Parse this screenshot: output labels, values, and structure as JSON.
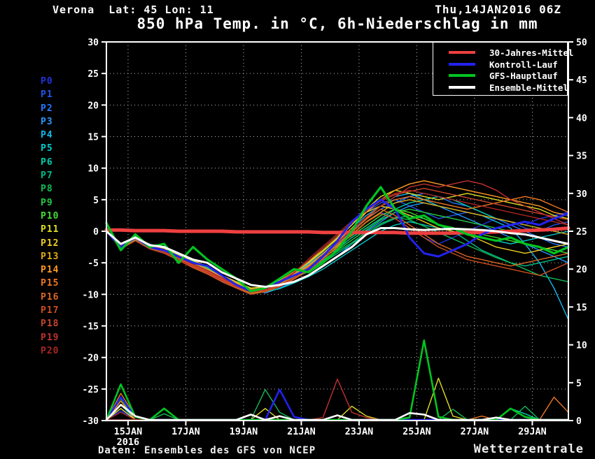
{
  "header": {
    "station": "Verona  Lat: 45 Lon: 11",
    "runtime": "Thu,14JAN2016 06Z",
    "title": "850 hPa Temp. in °C, 6h-Niederschlag in mm"
  },
  "footer": {
    "source": "Daten: Ensembles des GFS von NCEP",
    "brand": "Wetterzentrale"
  },
  "chart_data": {
    "type": "line",
    "title": "850 hPa Temp. in °C, 6h-Niederschlag in mm",
    "grid": true,
    "legend_position": "top-right",
    "x_axis": {
      "tick_labels": [
        "15JAN",
        "17JAN",
        "19JAN",
        "21JAN",
        "23JAN",
        "25JAN",
        "27JAN",
        "29JAN"
      ],
      "year_label": "2016",
      "tick_t": [
        1.5,
        5.5,
        9.5,
        13.5,
        17.5,
        21.5,
        25.5,
        29.5
      ]
    },
    "y_left": {
      "min": -30,
      "max": 30,
      "step": 5,
      "unit": "°C"
    },
    "y_right": {
      "min": 0,
      "max": 50,
      "step": 5,
      "unit": "mm"
    },
    "time_steps": 33,
    "step_hours": 12,
    "main_series": [
      {
        "name": "30-Jahres-Mittel",
        "color": "#ee4040",
        "width": 5,
        "temp": [
          0.2,
          0.2,
          0.1,
          0.1,
          0.1,
          0,
          0,
          0,
          0,
          -0.1,
          -0.1,
          -0.1,
          -0.1,
          -0.1,
          -0.1,
          -0.2,
          -0.2,
          -0.2,
          -0.2,
          -0.2,
          -0.2,
          -0.3,
          -0.3,
          -0.3,
          -0.3,
          -0.2,
          -0.2,
          -0.1,
          0,
          0.1,
          0.2,
          0.3,
          0.5
        ]
      },
      {
        "name": "Kontroll-Lauf",
        "color": "#2222ee",
        "width": 3,
        "temp": [
          0,
          -2.5,
          -1,
          -2.5,
          -3,
          -4,
          -5,
          -5.5,
          -7,
          -8.5,
          -9.5,
          -9,
          -8,
          -7,
          -6,
          -4,
          -1.5,
          1.5,
          3.5,
          5,
          3.5,
          -1,
          -3.5,
          -4,
          -3,
          -2,
          -0.5,
          0.5,
          1,
          1.5,
          1,
          2,
          2.8
        ],
        "precip": [
          [
            1,
            3
          ],
          [
            2,
            0.4
          ],
          [
            12,
            4
          ],
          [
            13,
            0.4
          ]
        ]
      },
      {
        "name": "GFS-Hauptlauf",
        "color": "#00c420",
        "width": 3.2,
        "temp": [
          1.3,
          -3,
          -0.5,
          -2.5,
          -2,
          -5,
          -2.5,
          -4.5,
          -6,
          -7.5,
          -9.5,
          -9,
          -7.5,
          -6,
          -6.5,
          -5,
          -3,
          0,
          4,
          7,
          3.5,
          2,
          2.5,
          1,
          0.5,
          -0.5,
          -1,
          -1.5,
          -1,
          -2,
          -2.5,
          -3.5,
          -2.5
        ],
        "precip": [
          [
            1,
            4.7
          ],
          [
            2,
            0.4
          ],
          [
            4,
            1.5
          ],
          [
            21,
            0.3
          ],
          [
            22,
            10.5
          ],
          [
            23,
            0.4
          ],
          [
            28,
            1.5
          ],
          [
            29,
            0.4
          ]
        ]
      },
      {
        "name": "Ensemble-Mittel",
        "color": "#ffffff",
        "width": 3,
        "temp": [
          0,
          -2,
          -1,
          -2.2,
          -2.5,
          -3.5,
          -4.5,
          -5,
          -6.5,
          -7.5,
          -8.5,
          -8.8,
          -8.5,
          -8,
          -7,
          -5.5,
          -4,
          -2.5,
          -0.5,
          0.5,
          0.5,
          0.3,
          0.2,
          0.3,
          0.4,
          0.3,
          0.2,
          0,
          -0.3,
          -0.5,
          -1,
          -1.5,
          -2
        ],
        "precip": [
          [
            1,
            2
          ],
          [
            2,
            0.5
          ],
          [
            10,
            0.7
          ],
          [
            12,
            0.5
          ],
          [
            16,
            0.6
          ],
          [
            21,
            0.9
          ],
          [
            22,
            0.7
          ],
          [
            27,
            0.3
          ]
        ]
      }
    ],
    "members": [
      {
        "name": "P0",
        "color": "#2233dd",
        "temp": [
          0,
          -2.5,
          -1,
          -2.3,
          -3,
          -4,
          -5,
          -5.5,
          -7,
          -8.5,
          -9,
          -9.5,
          -8.5,
          -7.5,
          -6,
          -4.5,
          -2.5,
          -0.5,
          1.5,
          3,
          2,
          0.5,
          -1,
          -2,
          -1,
          0,
          1,
          2,
          1.5,
          1,
          2,
          2.5,
          3
        ],
        "precip": [
          [
            1,
            1.2
          ]
        ]
      },
      {
        "name": "P1",
        "color": "#2255ee",
        "temp": [
          0,
          -2.2,
          -0.8,
          -2.5,
          -2.8,
          -3.8,
          -4.8,
          -6,
          -7.5,
          -8.8,
          -9.2,
          -9,
          -8,
          -6.5,
          -5,
          -3,
          -1,
          1,
          3,
          4.5,
          5,
          4,
          3,
          2,
          2.5,
          3,
          2.5,
          2,
          1.5,
          0.5,
          0,
          1,
          1.5
        ]
      },
      {
        "name": "P2",
        "color": "#2277ff",
        "temp": [
          0,
          -2.8,
          -1.2,
          -2,
          -3.2,
          -4.2,
          -5.2,
          -6.5,
          -8,
          -9,
          -10,
          -9.5,
          -8.5,
          -7,
          -5.5,
          -4,
          -2,
          0,
          2,
          3.5,
          4.5,
          5.5,
          6,
          5.5,
          4.5,
          4,
          3,
          2,
          1,
          0,
          -1,
          -2,
          -2.5
        ],
        "precip": [
          [
            1,
            1.5
          ]
        ]
      },
      {
        "name": "P3",
        "color": "#2299ff",
        "temp": [
          0,
          -2.4,
          -1,
          -2.6,
          -3,
          -4,
          -5.5,
          -6,
          -7,
          -8,
          -9,
          -9.8,
          -9,
          -8,
          -7,
          -5.5,
          -4,
          -2,
          0,
          1.5,
          3,
          4,
          4.5,
          4,
          3,
          2,
          1,
          0,
          -1,
          -2,
          -3,
          -4,
          -5
        ]
      },
      {
        "name": "P4",
        "color": "#11bbee",
        "temp": [
          0,
          -2.6,
          -1.4,
          -2.2,
          -3,
          -4.5,
          -5,
          -6.2,
          -7.8,
          -9,
          -9.5,
          -9,
          -8,
          -6.8,
          -5.2,
          -3.5,
          -1.5,
          0.5,
          2.5,
          4,
          5.5,
          6,
          5,
          4,
          3.5,
          3,
          2.5,
          1.5,
          0.5,
          -2,
          -5,
          -9,
          -14
        ],
        "precip": [
          [
            1,
            2
          ]
        ]
      },
      {
        "name": "P5",
        "color": "#00cccc",
        "temp": [
          0,
          -2.3,
          -0.9,
          -2.4,
          -3.1,
          -4.1,
          -5.3,
          -6.3,
          -7.2,
          -8.2,
          -9.3,
          -9.6,
          -9.1,
          -8.2,
          -7.2,
          -6,
          -4.5,
          -3,
          -1.5,
          0,
          1,
          1.5,
          1,
          0.5,
          0,
          -0.5,
          -1,
          -1.5,
          -2,
          -1.5,
          -1,
          -0.5,
          0
        ]
      },
      {
        "name": "P6",
        "color": "#00ccaa",
        "temp": [
          0,
          -2.7,
          -1.1,
          -2.1,
          -2.9,
          -3.9,
          -4.9,
          -5.8,
          -7.4,
          -8.6,
          -9.4,
          -9.2,
          -8.4,
          -7,
          -5.8,
          -4.2,
          -2.8,
          -1,
          0.5,
          2,
          3.5,
          4.5,
          5,
          5.5,
          5,
          4,
          3,
          2,
          1.5,
          1,
          0.5,
          0,
          -0.5
        ],
        "precip": [
          [
            28,
            1.5
          ],
          [
            29,
            0.8
          ]
        ]
      },
      {
        "name": "P7",
        "color": "#00bb88",
        "temp": [
          0,
          -2.5,
          -1.3,
          -2.7,
          -3.3,
          -4.3,
          -5.6,
          -6.6,
          -7.6,
          -8.4,
          -9.6,
          -9.4,
          -8.6,
          -7.4,
          -6.4,
          -5,
          -3.5,
          -2,
          -0.5,
          1,
          2,
          2.5,
          2,
          1,
          0,
          -1.5,
          -3,
          -4,
          -5,
          -5.5,
          -5,
          -4.5,
          -4
        ]
      },
      {
        "name": "P8",
        "color": "#11bb55",
        "temp": [
          0,
          -2.4,
          -1.2,
          -2.3,
          -3.2,
          -4.4,
          -5.4,
          -6.4,
          -7.3,
          -8.3,
          -9.2,
          -9,
          -8.2,
          -7.2,
          -6.2,
          -4.8,
          -3.2,
          -1.8,
          -0.2,
          1.2,
          2.2,
          1.8,
          0.8,
          -0.2,
          -1.2,
          -2.2,
          -3.2,
          -4.2,
          -5,
          -6,
          -7,
          -7.5,
          -8
        ],
        "precip": [
          [
            1,
            2.8
          ],
          [
            4,
            0.8
          ],
          [
            11,
            4
          ],
          [
            12,
            1
          ],
          [
            24,
            1.4
          ],
          [
            29,
            1.8
          ]
        ]
      },
      {
        "name": "P9",
        "color": "#22cc44",
        "temp": [
          0,
          -2.6,
          -1,
          -2.5,
          -3,
          -4.2,
          -5.1,
          -6.1,
          -7.7,
          -8.7,
          -9.7,
          -9.3,
          -8.3,
          -7.3,
          -6,
          -4.6,
          -3,
          -1.4,
          0.2,
          1.8,
          3,
          3.5,
          3,
          2.5,
          2,
          1.5,
          1,
          0.5,
          0,
          -0.5,
          -1,
          -1.5,
          -2
        ]
      },
      {
        "name": "P10",
        "color": "#44dd33",
        "temp": [
          0,
          -2.2,
          -0.7,
          -2.2,
          -2.7,
          -3.7,
          -4.7,
          -5.7,
          -7.1,
          -8.1,
          -9.1,
          -8.9,
          -8.1,
          -6.9,
          -5.5,
          -3.9,
          -2.3,
          -0.7,
          0.9,
          2.5,
          3.5,
          3,
          2,
          1,
          0.5,
          0,
          -0.5,
          -1,
          -1.5,
          -2,
          -2.5,
          -3,
          -3.5
        ]
      },
      {
        "name": "P11",
        "color": "#dddd22",
        "temp": [
          0,
          -2.5,
          -1.1,
          -2.4,
          -3.1,
          -4.1,
          -5.2,
          -6.2,
          -7.4,
          -8.5,
          -9.4,
          -9.1,
          -8,
          -6.6,
          -5,
          -3.2,
          -1.2,
          1,
          3.5,
          5.5,
          6.5,
          6,
          5.5,
          5,
          5.5,
          6,
          5.5,
          5,
          4.5,
          4,
          3.5,
          2.5,
          2
        ],
        "precip": [
          [
            1,
            1.5
          ],
          [
            11,
            1.5
          ],
          [
            17,
            1.8
          ],
          [
            18,
            0.5
          ],
          [
            23,
            5.5
          ],
          [
            24,
            0.5
          ]
        ]
      },
      {
        "name": "P12",
        "color": "#eecc22",
        "temp": [
          0,
          -2.3,
          -0.8,
          -2.1,
          -2.8,
          -3.8,
          -4.6,
          -5.6,
          -7,
          -8,
          -9,
          -8.8,
          -7.8,
          -6.4,
          -4.8,
          -3,
          -1,
          1.5,
          3,
          4,
          3.5,
          2.5,
          1.5,
          0.5,
          0,
          -0.5,
          -1.5,
          -2.5,
          -3,
          -3.5,
          -3,
          -2.5,
          -2
        ]
      },
      {
        "name": "P13",
        "color": "#ddaa11",
        "temp": [
          0,
          -2.7,
          -1.3,
          -2.6,
          -3.3,
          -4.5,
          -5.7,
          -6.7,
          -7.9,
          -8.9,
          -9.8,
          -9.5,
          -8.7,
          -7.5,
          -6.1,
          -4.3,
          -2.5,
          -0.5,
          1.5,
          3,
          4.5,
          5,
          4.5,
          4,
          3.5,
          3,
          2.5,
          2,
          1.5,
          1,
          0.5,
          0,
          -0.5
        ]
      },
      {
        "name": "P14",
        "color": "#ff9922",
        "temp": [
          0,
          -2.4,
          -0.9,
          -2.3,
          -3,
          -4,
          -5,
          -6,
          -7.2,
          -8.2,
          -9.2,
          -9,
          -8,
          -6.8,
          -5.4,
          -3.6,
          -1.6,
          0.5,
          3,
          5,
          6.5,
          7.5,
          8,
          7.5,
          7,
          6.5,
          6,
          5.5,
          5,
          4.5,
          4,
          3,
          2.5
        ],
        "precip": [
          [
            1,
            2.5
          ]
        ]
      },
      {
        "name": "P15",
        "color": "#ee7722",
        "temp": [
          0,
          -2.6,
          -1.2,
          -2.5,
          -3.2,
          -4.4,
          -5.5,
          -6.5,
          -7.7,
          -8.7,
          -9.6,
          -9.2,
          -8.4,
          -7,
          -5.6,
          -4,
          -2.2,
          -0.2,
          2,
          4,
          5,
          5.5,
          5,
          4.5,
          4,
          3.5,
          4,
          4.5,
          5,
          5.5,
          5,
          4,
          3
        ],
        "precip": [
          [
            1,
            3.5
          ],
          [
            2,
            0.5
          ],
          [
            26,
            0.5
          ],
          [
            31,
            3
          ],
          [
            32,
            1
          ]
        ]
      },
      {
        "name": "P16",
        "color": "#dd6622",
        "temp": [
          0,
          -2.5,
          -1,
          -2.2,
          -3,
          -4.2,
          -5.3,
          -6.3,
          -7.5,
          -8.5,
          -9.5,
          -9.3,
          -8.5,
          -7.3,
          -5.9,
          -4.1,
          -2.1,
          -0.1,
          1.9,
          3.5,
          2.5,
          1,
          -0.5,
          -2,
          -3,
          -4,
          -4.5,
          -5,
          -5.5,
          -5,
          -4.5,
          -4,
          -3.5
        ]
      },
      {
        "name": "P17",
        "color": "#cc4d1d",
        "temp": [
          0,
          -2.8,
          -1.5,
          -2.8,
          -3.5,
          -4.6,
          -5.8,
          -6.8,
          -8,
          -9,
          -10,
          -9.6,
          -8.8,
          -7.6,
          -6.2,
          -4.4,
          -2.6,
          -0.6,
          1.4,
          2.8,
          2,
          0.5,
          -1,
          -2.5,
          -3.5,
          -4.5,
          -5,
          -5.5,
          -6,
          -6.5,
          -7,
          -6,
          -5
        ]
      },
      {
        "name": "P18",
        "color": "#c8442c",
        "temp": [
          0,
          -2.3,
          -1,
          -2.4,
          -3.1,
          -4.3,
          -5.4,
          -6.4,
          -7.6,
          -8.6,
          -9.3,
          -8.9,
          -7.9,
          -6.5,
          -4.7,
          -2.7,
          -0.7,
          1.3,
          3.3,
          4.8,
          5.8,
          6.3,
          6.8,
          6.3,
          5.8,
          5.3,
          4.8,
          4.3,
          3.8,
          3.3,
          2.8,
          2.3,
          1.8
        ]
      },
      {
        "name": "P19",
        "color": "#c03030",
        "temp": [
          0,
          -2.5,
          -1.2,
          -2.6,
          -3.3,
          -4.5,
          -5.6,
          -6.6,
          -7.8,
          -8.8,
          -9.7,
          -9.4,
          -8.6,
          -7.4,
          -5.8,
          -3.8,
          -1.8,
          0.2,
          2.2,
          4,
          5.5,
          7,
          7.5,
          7,
          7.5,
          8,
          7.5,
          6.5,
          5,
          4,
          3,
          2,
          1
        ],
        "precip": [
          [
            15,
            0.3
          ],
          [
            16,
            5.4
          ],
          [
            17,
            1
          ],
          [
            18,
            0.3
          ]
        ]
      },
      {
        "name": "P20",
        "color": "#a82424",
        "temp": [
          0,
          -2.2,
          -0.9,
          -2.2,
          -2.9,
          -4.1,
          -5.2,
          -6.2,
          -7.4,
          -8.4,
          -9.4,
          -9.2,
          -8.2,
          -6.6,
          -4.4,
          -2.4,
          -0.4,
          1.6,
          3.6,
          5,
          6,
          6.5,
          6,
          5.5,
          5,
          4.5,
          4,
          3.5,
          3,
          2.5,
          2,
          1.5,
          1
        ],
        "precip": [
          [
            1,
            1
          ]
        ]
      }
    ]
  }
}
